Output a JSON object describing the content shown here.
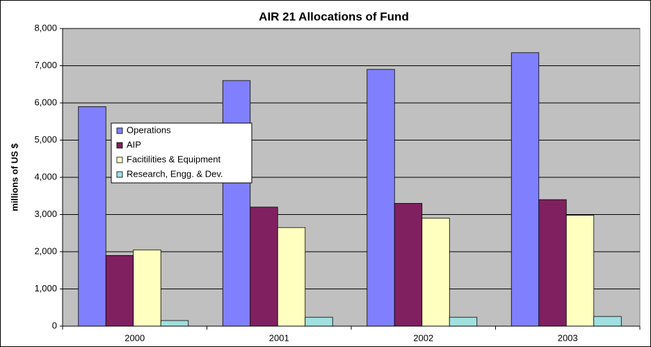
{
  "chart_data": {
    "type": "bar",
    "title": "AIR 21 Allocations of Fund",
    "y_label": "millions of US $",
    "categories": [
      "2000",
      "2001",
      "2002",
      "2003"
    ],
    "series": [
      {
        "name": "Operations",
        "color": "#8080ff",
        "values": [
          5900,
          6600,
          6900,
          7350
        ]
      },
      {
        "name": "AIP",
        "color": "#802060",
        "values": [
          1900,
          3200,
          3300,
          3400
        ]
      },
      {
        "name": "Facitilities & Equipment",
        "color": "#ffffc0",
        "values": [
          2050,
          2650,
          2900,
          2980
        ]
      },
      {
        "name": "Research, Engg. & Dev.",
        "color": "#a0e0e0",
        "values": [
          150,
          240,
          240,
          260
        ]
      }
    ],
    "ylim": [
      0,
      8000
    ],
    "yticks": [
      0,
      {
        "value": 1000,
        "label": "1,000"
      },
      {
        "value": 2000,
        "label": "2,000"
      },
      {
        "value": 3000,
        "label": "3,000"
      },
      {
        "value": 4000,
        "label": "4,000"
      },
      {
        "value": 5000,
        "label": "5,000"
      },
      {
        "value": 6000,
        "label": "6,000"
      },
      {
        "value": 7000,
        "label": "7,000"
      },
      {
        "value": 8000,
        "label": "8,000"
      }
    ],
    "grid": true,
    "legend": "left"
  }
}
